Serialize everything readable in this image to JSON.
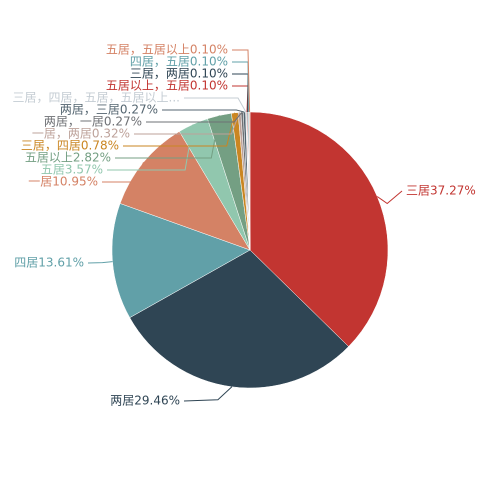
{
  "chart_data": {
    "type": "pie",
    "title": "",
    "slices": [
      {
        "label": "三居",
        "percent": 37.27,
        "display": "三居37.27%",
        "color": "#c23531"
      },
      {
        "label": "两居",
        "percent": 29.46,
        "display": "两居29.46%",
        "color": "#2f4554"
      },
      {
        "label": "四居",
        "percent": 13.61,
        "display": "四居13.61%",
        "color": "#61a0a8"
      },
      {
        "label": "一居",
        "percent": 10.95,
        "display": "一居10.95%",
        "color": "#d48265"
      },
      {
        "label": "五居",
        "percent": 3.57,
        "display": "五居3.57%",
        "color": "#91c7ae"
      },
      {
        "label": "五居以上",
        "percent": 2.82,
        "display": "五居以上2.82%",
        "color": "#749f83"
      },
      {
        "label": "三居，四居",
        "percent": 0.78,
        "display": "三居，四居0.78%",
        "color": "#ca8622"
      },
      {
        "label": "一居，两居",
        "percent": 0.32,
        "display": "一居，两居0.32%",
        "color": "#bda29a"
      },
      {
        "label": "两居，一居",
        "percent": 0.27,
        "display": "两居，一居0.27%",
        "color": "#6e7074"
      },
      {
        "label": "两居，三居",
        "percent": 0.27,
        "display": "两居，三居0.27%",
        "color": "#546570"
      },
      {
        "label": "三居，四居，五居，五居以上",
        "percent": 0.11,
        "display": "三居，四居，五居，五居以上...",
        "color": "#c4ccd3"
      },
      {
        "label": "五居以上，五居",
        "percent": 0.1,
        "display": "五居以上，五居0.10%",
        "color": "#c23531"
      },
      {
        "label": "三居，两居",
        "percent": 0.1,
        "display": "三居，两居0.10%",
        "color": "#2f4554"
      },
      {
        "label": "四居，五居",
        "percent": 0.1,
        "display": "四居，五居0.10%",
        "color": "#61a0a8"
      },
      {
        "label": "五居，五居以上",
        "percent": 0.1,
        "display": "五居，五居以上0.10%",
        "color": "#d48265"
      }
    ]
  }
}
